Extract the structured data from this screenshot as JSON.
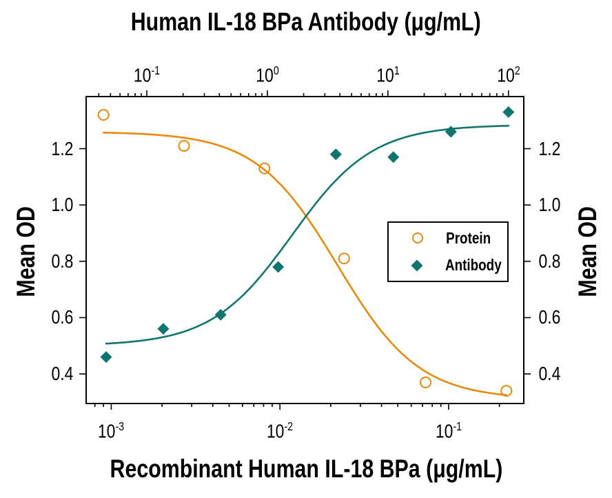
{
  "chart_data": {
    "type": "scatter",
    "description": "Dose-response / neutralization curves, dual log x-axes sharing one OD y-axis",
    "grid": false,
    "axes": {
      "top": {
        "label": "Human IL-18 BPa Antibody (μg/mL)",
        "scale": "log",
        "range": [
          0.0314,
          134
        ],
        "ticks": [
          {
            "v": 0.1,
            "base": "10",
            "exp": "-1"
          },
          {
            "v": 1,
            "base": "10",
            "exp": "0"
          },
          {
            "v": 10,
            "base": "10",
            "exp": "1"
          },
          {
            "v": 100,
            "base": "10",
            "exp": "2"
          }
        ]
      },
      "bottom": {
        "label": "Recombinant Human IL-18 BPa (μg/mL)",
        "scale": "log",
        "range": [
          0.00071,
          0.279
        ],
        "ticks": [
          {
            "v": 0.001,
            "base": "10",
            "exp": "-3"
          },
          {
            "v": 0.01,
            "base": "10",
            "exp": "-2"
          },
          {
            "v": 0.1,
            "base": "10",
            "exp": "-1"
          }
        ]
      },
      "left": {
        "label": "Mean OD",
        "scale": "linear",
        "range": [
          0.295,
          1.385
        ],
        "ticks": [
          {
            "v": 0.4,
            "label": "0.4"
          },
          {
            "v": 0.6,
            "label": "0.6"
          },
          {
            "v": 0.8,
            "label": "0.8"
          },
          {
            "v": 1.0,
            "label": "1.0"
          },
          {
            "v": 1.2,
            "label": "1.2"
          }
        ]
      },
      "right": {
        "label": "Mean OD",
        "mirrors": "left"
      }
    },
    "series": [
      {
        "name": "Protein",
        "axis": "bottom",
        "marker": "open-circle",
        "color": "#E8890F",
        "x": [
          0.0009,
          0.0027,
          0.0081,
          0.024,
          0.073,
          0.22
        ],
        "y": [
          1.32,
          1.21,
          1.13,
          0.81,
          0.37,
          0.34
        ],
        "fit": {
          "model": "4PL",
          "direction": "decreasing",
          "top": 1.26,
          "bottom": 0.31,
          "ec50": 0.022,
          "hill": 1.8
        }
      },
      {
        "name": "Antibody",
        "axis": "top",
        "marker": "filled-diamond",
        "color": "#0F756E",
        "x": [
          0.046,
          0.137,
          0.41,
          1.23,
          3.7,
          11.1,
          33.3,
          100
        ],
        "y": [
          0.46,
          0.56,
          0.61,
          0.78,
          1.18,
          1.17,
          1.26,
          1.33
        ],
        "fit": {
          "model": "4PL",
          "direction": "increasing",
          "top": 1.285,
          "bottom": 0.5,
          "ec50": 1.6,
          "hill": 1.3
        }
      }
    ],
    "legend": {
      "position": "middle-right-inside",
      "items": [
        {
          "label": "Protein",
          "marker": "open-circle",
          "color": "#E8890F"
        },
        {
          "label": "Antibody",
          "marker": "filled-diamond",
          "color": "#0F756E"
        }
      ]
    }
  }
}
